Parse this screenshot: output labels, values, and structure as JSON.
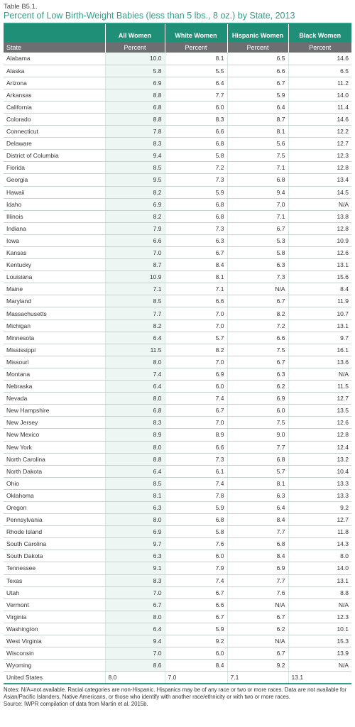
{
  "table_label": "Table B5.1.",
  "title": "Percent of Low Birth-Weight Babies (less than 5 lbs., 8 oz.) by State, 2013",
  "columns": [
    "All Women",
    "White Women",
    "Hispanic Women",
    "Black Women"
  ],
  "row_header": "State",
  "unit_label": "Percent",
  "rows": [
    {
      "state": "Alabama",
      "all": "10.0",
      "white": "8.1",
      "hispanic": "6.5",
      "black": "14.6"
    },
    {
      "state": "Alaska",
      "all": "5.8",
      "white": "5.5",
      "hispanic": "6.6",
      "black": "6.5"
    },
    {
      "state": "Arizona",
      "all": "6.9",
      "white": "6.4",
      "hispanic": "6.7",
      "black": "11.2"
    },
    {
      "state": "Arkansas",
      "all": "8.8",
      "white": "7.7",
      "hispanic": "5.9",
      "black": "14.0"
    },
    {
      "state": "California",
      "all": "6.8",
      "white": "6.0",
      "hispanic": "6.4",
      "black": "11.4"
    },
    {
      "state": "Colorado",
      "all": "8.8",
      "white": "8.3",
      "hispanic": "8.7",
      "black": "14.6"
    },
    {
      "state": "Connecticut",
      "all": "7.8",
      "white": "6.6",
      "hispanic": "8.1",
      "black": "12.2"
    },
    {
      "state": "Delaware",
      "all": "8.3",
      "white": "6.8",
      "hispanic": "5.6",
      "black": "12.7"
    },
    {
      "state": "District of Columbia",
      "all": "9.4",
      "white": "5.8",
      "hispanic": "7.5",
      "black": "12.3"
    },
    {
      "state": "Florida",
      "all": "8.5",
      "white": "7.2",
      "hispanic": "7.1",
      "black": "12.8"
    },
    {
      "state": "Georgia",
      "all": "9.5",
      "white": "7.3",
      "hispanic": "6.8",
      "black": "13.4"
    },
    {
      "state": "Hawaii",
      "all": "8.2",
      "white": "5.9",
      "hispanic": "9.4",
      "black": "14.5"
    },
    {
      "state": "Idaho",
      "all": "6.9",
      "white": "6.8",
      "hispanic": "7.0",
      "black": "N/A"
    },
    {
      "state": "Illinois",
      "all": "8.2",
      "white": "6.8",
      "hispanic": "7.1",
      "black": "13.8"
    },
    {
      "state": "Indiana",
      "all": "7.9",
      "white": "7.3",
      "hispanic": "6.7",
      "black": "12.8"
    },
    {
      "state": "Iowa",
      "all": "6.6",
      "white": "6.3",
      "hispanic": "5.3",
      "black": "10.9"
    },
    {
      "state": "Kansas",
      "all": "7.0",
      "white": "6.7",
      "hispanic": "5.8",
      "black": "12.6"
    },
    {
      "state": "Kentucky",
      "all": "8.7",
      "white": "8.4",
      "hispanic": "6.3",
      "black": "13.1"
    },
    {
      "state": "Louisiana",
      "all": "10.9",
      "white": "8.1",
      "hispanic": "7.3",
      "black": "15.6"
    },
    {
      "state": "Maine",
      "all": "7.1",
      "white": "7.1",
      "hispanic": "N/A",
      "black": "8.4"
    },
    {
      "state": "Maryland",
      "all": "8.5",
      "white": "6.6",
      "hispanic": "6.7",
      "black": "11.9"
    },
    {
      "state": "Massachusetts",
      "all": "7.7",
      "white": "7.0",
      "hispanic": "8.2",
      "black": "10.7"
    },
    {
      "state": "Michigan",
      "all": "8.2",
      "white": "7.0",
      "hispanic": "7.2",
      "black": "13.1"
    },
    {
      "state": "Minnesota",
      "all": "6.4",
      "white": "5.7",
      "hispanic": "6.6",
      "black": "9.7"
    },
    {
      "state": "Mississippi",
      "all": "11.5",
      "white": "8.2",
      "hispanic": "7.5",
      "black": "16.1"
    },
    {
      "state": "Missouri",
      "all": "8.0",
      "white": "7.0",
      "hispanic": "6.7",
      "black": "13.6"
    },
    {
      "state": "Montana",
      "all": "7.4",
      "white": "6.9",
      "hispanic": "6.3",
      "black": "N/A"
    },
    {
      "state": "Nebraska",
      "all": "6.4",
      "white": "6.0",
      "hispanic": "6.2",
      "black": "11.5"
    },
    {
      "state": "Nevada",
      "all": "8.0",
      "white": "7.4",
      "hispanic": "6.9",
      "black": "12.7"
    },
    {
      "state": "New Hampshire",
      "all": "6.8",
      "white": "6.7",
      "hispanic": "6.0",
      "black": "13.5"
    },
    {
      "state": "New Jersey",
      "all": "8.3",
      "white": "7.0",
      "hispanic": "7.5",
      "black": "12.6"
    },
    {
      "state": "New Mexico",
      "all": "8.9",
      "white": "8.9",
      "hispanic": "9.0",
      "black": "12.8"
    },
    {
      "state": "New York",
      "all": "8.0",
      "white": "6.6",
      "hispanic": "7.7",
      "black": "12.4"
    },
    {
      "state": "North Carolina",
      "all": "8.8",
      "white": "7.3",
      "hispanic": "6.8",
      "black": "13.2"
    },
    {
      "state": "North Dakota",
      "all": "6.4",
      "white": "6.1",
      "hispanic": "5.7",
      "black": "10.4"
    },
    {
      "state": "Ohio",
      "all": "8.5",
      "white": "7.4",
      "hispanic": "8.1",
      "black": "13.3"
    },
    {
      "state": "Oklahoma",
      "all": "8.1",
      "white": "7.8",
      "hispanic": "6.3",
      "black": "13.3"
    },
    {
      "state": "Oregon",
      "all": "6.3",
      "white": "5.9",
      "hispanic": "6.4",
      "black": "9.2"
    },
    {
      "state": "Pennsylvania",
      "all": "8.0",
      "white": "6.8",
      "hispanic": "8.4",
      "black": "12.7"
    },
    {
      "state": "Rhode Island",
      "all": "6.9",
      "white": "5.8",
      "hispanic": "7.7",
      "black": "11.8"
    },
    {
      "state": "South Carolina",
      "all": "9.7",
      "white": "7.6",
      "hispanic": "6.8",
      "black": "14.3"
    },
    {
      "state": "South Dakota",
      "all": "6.3",
      "white": "6.0",
      "hispanic": "8.4",
      "black": "8.0"
    },
    {
      "state": "Tennessee",
      "all": "9.1",
      "white": "7.9",
      "hispanic": "6.9",
      "black": "14.0"
    },
    {
      "state": "Texas",
      "all": "8.3",
      "white": "7.4",
      "hispanic": "7.7",
      "black": "13.1"
    },
    {
      "state": "Utah",
      "all": "7.0",
      "white": "6.7",
      "hispanic": "7.6",
      "black": "8.8"
    },
    {
      "state": "Vermont",
      "all": "6.7",
      "white": "6.6",
      "hispanic": "N/A",
      "black": "N/A"
    },
    {
      "state": "Virginia",
      "all": "8.0",
      "white": "6.7",
      "hispanic": "6.7",
      "black": "12.3"
    },
    {
      "state": "Washington",
      "all": "6.4",
      "white": "5.9",
      "hispanic": "6.2",
      "black": "10.1"
    },
    {
      "state": "West Virginia",
      "all": "9.4",
      "white": "9.2",
      "hispanic": "N/A",
      "black": "15.3"
    },
    {
      "state": "Wisconsin",
      "all": "7.0",
      "white": "6.0",
      "hispanic": "6.7",
      "black": "13.9"
    },
    {
      "state": "Wyoming",
      "all": "8.6",
      "white": "8.4",
      "hispanic": "9.2",
      "black": "N/A"
    }
  ],
  "us_row": {
    "state": "United States",
    "all": "8.0",
    "white": "7.0",
    "hispanic": "7.1",
    "black": "13.1"
  },
  "notes": "Notes: N/A=not available. Racial categories are non-Hispanic. Hispanics may be of any race or two or more races. Data are not available for Asian/Pacific Islanders, Native Americans, or those who identify with another race/ethnicity or with two or more races.",
  "source": "Source: IWPR compilation of data from Martin et al. 2015b.",
  "colors": {
    "accent": "#2e9e88",
    "header_bg": "#1f8f78",
    "subheader_bg": "#6d6e71",
    "stripe": "#eef6f4"
  }
}
